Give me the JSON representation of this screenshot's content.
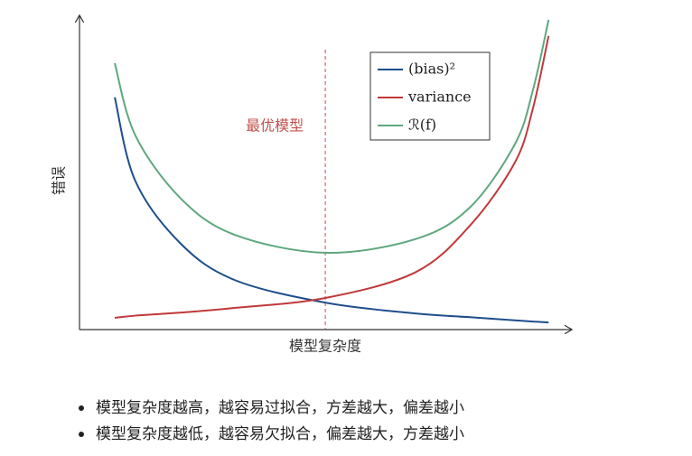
{
  "chart_data": {
    "type": "line",
    "x_label": "模型复杂度",
    "y_label": "错误",
    "x": [
      0.72,
      1.14,
      2.07,
      3.17,
      5.02,
      6.86,
      7.97,
      8.89,
      9.26,
      9.58
    ],
    "series": [
      {
        "name": "(bias)²",
        "color": "#1f4e8c",
        "values": [
          7.5,
          4.8,
          2.77,
          1.6,
          0.87,
          0.52,
          0.4,
          0.3,
          0.26,
          0.23
        ]
      },
      {
        "name": "variance",
        "color": "#c0393b",
        "values": [
          0.38,
          0.45,
          0.55,
          0.7,
          1.02,
          1.85,
          3.35,
          5.39,
          7.14,
          9.48
        ]
      },
      {
        "name": "ℛ(f)",
        "color": "#5fa77f",
        "values": [
          8.6,
          6.27,
          4.23,
          3.06,
          2.48,
          2.92,
          3.94,
          5.98,
          7.73,
          10.0
        ]
      }
    ],
    "annotation": {
      "text": "最优模型",
      "x": 5.02,
      "color": "#c0504d"
    },
    "xlim": [
      0,
      10
    ],
    "ylim": [
      0,
      10
    ],
    "legend": "upper right"
  },
  "bullets": [
    "模型复杂度越高，越容易过拟合，方差越大，偏差越小",
    "模型复杂度越低，越容易欠拟合，偏差越大，方差越小"
  ]
}
